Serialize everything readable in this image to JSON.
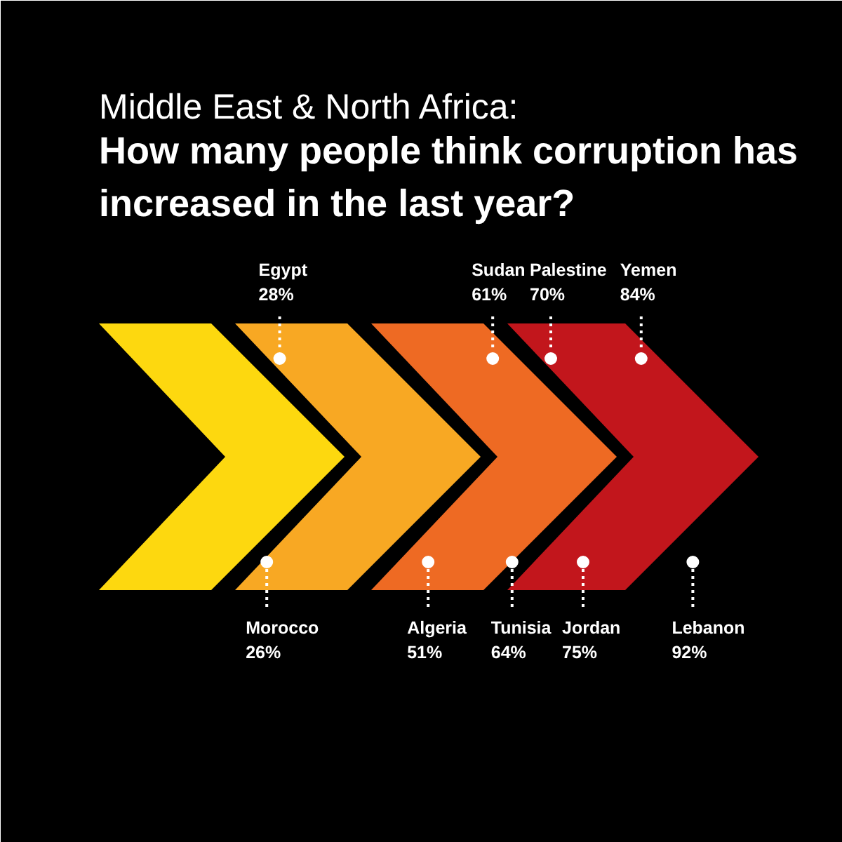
{
  "chart_data": {
    "type": "other",
    "title": "Middle East & North Africa:",
    "subtitle": "How many people think corruption has increased in the last year?",
    "categories": [
      "Morocco",
      "Egypt",
      "Algeria",
      "Sudan",
      "Tunisia",
      "Palestine",
      "Jordan",
      "Yemen",
      "Lebanon"
    ],
    "values": [
      26,
      28,
      51,
      61,
      64,
      70,
      75,
      84,
      92
    ],
    "value_labels": [
      "26%",
      "28%",
      "51%",
      "61%",
      "64%",
      "70%",
      "75%",
      "84%",
      "92%"
    ]
  }
}
